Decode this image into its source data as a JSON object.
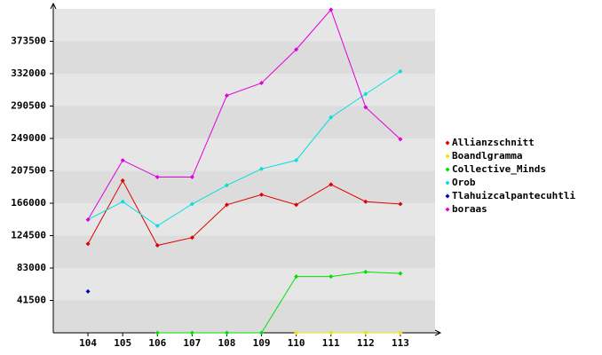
{
  "chart_data": {
    "type": "line",
    "categories": [
      "104",
      "105",
      "106",
      "107",
      "108",
      "109",
      "110",
      "111",
      "112",
      "113"
    ],
    "ylim": [
      0,
      415000
    ],
    "yticks": [
      41500,
      83000,
      124500,
      166000,
      207500,
      249000,
      290500,
      332000,
      373500
    ],
    "legend": "right",
    "series": [
      {
        "name": "Allianzschnitt",
        "color": "#e00000",
        "values": [
          114000,
          195000,
          112000,
          122000,
          164000,
          177000,
          164000,
          190000,
          168000,
          165000
        ]
      },
      {
        "name": "Boandlgramma",
        "color": "#e8e800",
        "values": [
          null,
          null,
          null,
          null,
          null,
          null,
          0,
          0,
          0,
          0
        ]
      },
      {
        "name": "Collective_Minds",
        "color": "#00e000",
        "values": [
          null,
          null,
          0,
          0,
          0,
          0,
          72000,
          72000,
          78000,
          76000
        ]
      },
      {
        "name": "Orob",
        "color": "#00e0e0",
        "values": [
          145000,
          168000,
          137000,
          165000,
          189000,
          210000,
          221000,
          276000,
          306000,
          335000
        ]
      },
      {
        "name": "Tlahuizcalpantecuhtli",
        "color": "#0000c0",
        "values": [
          53000,
          null,
          null,
          null,
          null,
          null,
          null,
          null,
          null,
          null
        ]
      },
      {
        "name": "boraas",
        "color": "#e000e0",
        "values": [
          145000,
          221000,
          199500,
          199500,
          304000,
          320000,
          363000,
          414000,
          289000,
          248000
        ]
      }
    ]
  }
}
